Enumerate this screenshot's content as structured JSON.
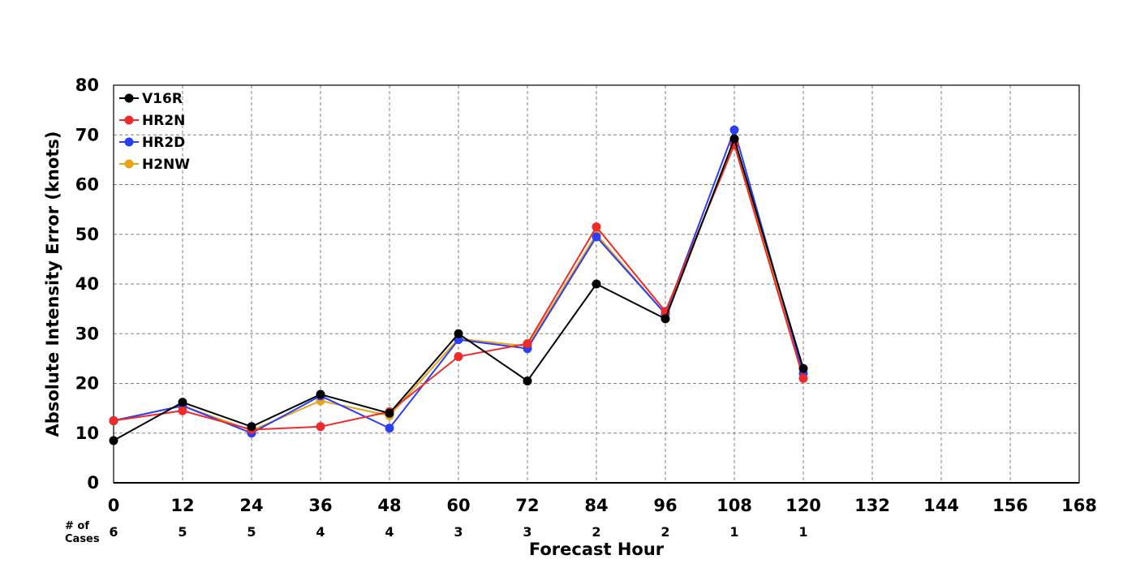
{
  "chart_data": {
    "type": "line",
    "title": "",
    "xlabel": "Forecast Hour",
    "ylabel": "Absolute Intensity Error (knots)",
    "xlim": [
      0,
      168
    ],
    "ylim": [
      0,
      80
    ],
    "x_ticks": [
      0,
      12,
      24,
      36,
      48,
      60,
      72,
      84,
      96,
      108,
      120,
      132,
      144,
      156,
      168
    ],
    "y_ticks": [
      0,
      10,
      20,
      30,
      40,
      50,
      60,
      70,
      80
    ],
    "grid": true,
    "legend_position": "top-left",
    "cases_label_line1": "# of",
    "cases_label_line2": "Cases",
    "cases": [
      {
        "x": 0,
        "n": "6"
      },
      {
        "x": 12,
        "n": "5"
      },
      {
        "x": 24,
        "n": "5"
      },
      {
        "x": 36,
        "n": "4"
      },
      {
        "x": 48,
        "n": "4"
      },
      {
        "x": 60,
        "n": "3"
      },
      {
        "x": 72,
        "n": "3"
      },
      {
        "x": 84,
        "n": "2"
      },
      {
        "x": 96,
        "n": "2"
      },
      {
        "x": 108,
        "n": "1"
      },
      {
        "x": 120,
        "n": "1"
      }
    ],
    "series": [
      {
        "name": "H2NW",
        "color": "#E8A317",
        "points": [
          [
            0,
            12.5
          ],
          [
            12,
            15.5
          ],
          [
            24,
            10.5
          ],
          [
            36,
            16.5
          ],
          [
            48,
            13.5
          ],
          [
            60,
            29
          ],
          [
            72,
            27.5
          ],
          [
            84,
            50
          ],
          [
            96,
            34
          ],
          [
            108,
            68.5
          ],
          [
            120,
            22
          ]
        ]
      },
      {
        "name": "HR2D",
        "color": "#2B3FF5",
        "points": [
          [
            0,
            12.5
          ],
          [
            12,
            15.5
          ],
          [
            24,
            10
          ],
          [
            36,
            17.5
          ],
          [
            48,
            11
          ],
          [
            60,
            28.8
          ],
          [
            72,
            27
          ],
          [
            84,
            49.5
          ],
          [
            96,
            34
          ],
          [
            108,
            71
          ],
          [
            120,
            22
          ]
        ]
      },
      {
        "name": "HR2N",
        "color": "#EE2A2A",
        "points": [
          [
            0,
            12.5
          ],
          [
            12,
            14.5
          ],
          [
            24,
            10.7
          ],
          [
            36,
            11.3
          ],
          [
            48,
            14.3
          ],
          [
            60,
            25.4
          ],
          [
            72,
            28
          ],
          [
            84,
            51.5
          ],
          [
            96,
            34.5
          ],
          [
            108,
            68
          ],
          [
            120,
            21
          ]
        ]
      },
      {
        "name": "V16R",
        "color": "#000000",
        "points": [
          [
            0,
            8.5
          ],
          [
            12,
            16.2
          ],
          [
            24,
            11.3
          ],
          [
            36,
            17.8
          ],
          [
            48,
            14
          ],
          [
            60,
            30
          ],
          [
            72,
            20.5
          ],
          [
            84,
            40
          ],
          [
            96,
            33
          ],
          [
            108,
            69.2
          ],
          [
            120,
            23
          ]
        ]
      }
    ],
    "legend_order": [
      "V16R",
      "HR2N",
      "HR2D",
      "H2NW"
    ]
  }
}
